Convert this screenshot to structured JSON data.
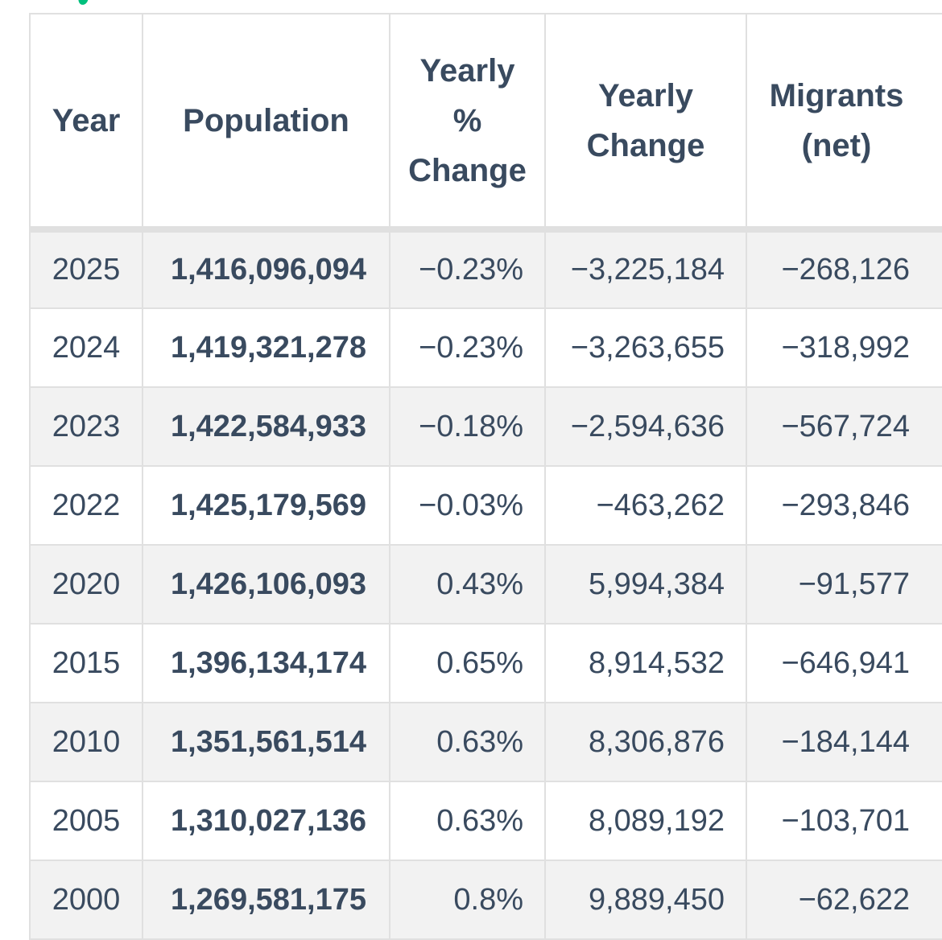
{
  "decoration": {
    "green_text_fragment": {
      "name": "clipped-green-text-fragment",
      "color": "#00c07d"
    }
  },
  "table": {
    "name": "population-by-year-table",
    "columns": [
      {
        "key": "year",
        "label": "Year"
      },
      {
        "key": "population",
        "label": "Population"
      },
      {
        "key": "pct",
        "label": "Yearly % Change"
      },
      {
        "key": "change",
        "label": "Yearly Change"
      },
      {
        "key": "migrants",
        "label": "Migrants (net)"
      }
    ],
    "rows": [
      {
        "year": "2025",
        "population": "1,416,096,094",
        "pct": "−0.23%",
        "change": "−3,225,184",
        "migrants": "−268,126"
      },
      {
        "year": "2024",
        "population": "1,419,321,278",
        "pct": "−0.23%",
        "change": "−3,263,655",
        "migrants": "−318,992"
      },
      {
        "year": "2023",
        "population": "1,422,584,933",
        "pct": "−0.18%",
        "change": "−2,594,636",
        "migrants": "−567,724"
      },
      {
        "year": "2022",
        "population": "1,425,179,569",
        "pct": "−0.03%",
        "change": "−463,262",
        "migrants": "−293,846"
      },
      {
        "year": "2020",
        "population": "1,426,106,093",
        "pct": "0.43%",
        "change": "5,994,384",
        "migrants": "−91,577"
      },
      {
        "year": "2015",
        "population": "1,396,134,174",
        "pct": "0.65%",
        "change": "8,914,532",
        "migrants": "−646,941"
      },
      {
        "year": "2010",
        "population": "1,351,561,514",
        "pct": "0.63%",
        "change": "8,306,876",
        "migrants": "−184,144"
      },
      {
        "year": "2005",
        "population": "1,310,027,136",
        "pct": "0.63%",
        "change": "8,089,192",
        "migrants": "−103,701"
      },
      {
        "year": "2000",
        "population": "1,269,581,175",
        "pct": "0.8%",
        "change": "9,889,450",
        "migrants": "−62,622"
      }
    ],
    "colors": {
      "text": "#394a5f",
      "border": "#e0e0e0",
      "alt_row_background": "#f2f2f2",
      "row_background": "#ffffff"
    }
  }
}
